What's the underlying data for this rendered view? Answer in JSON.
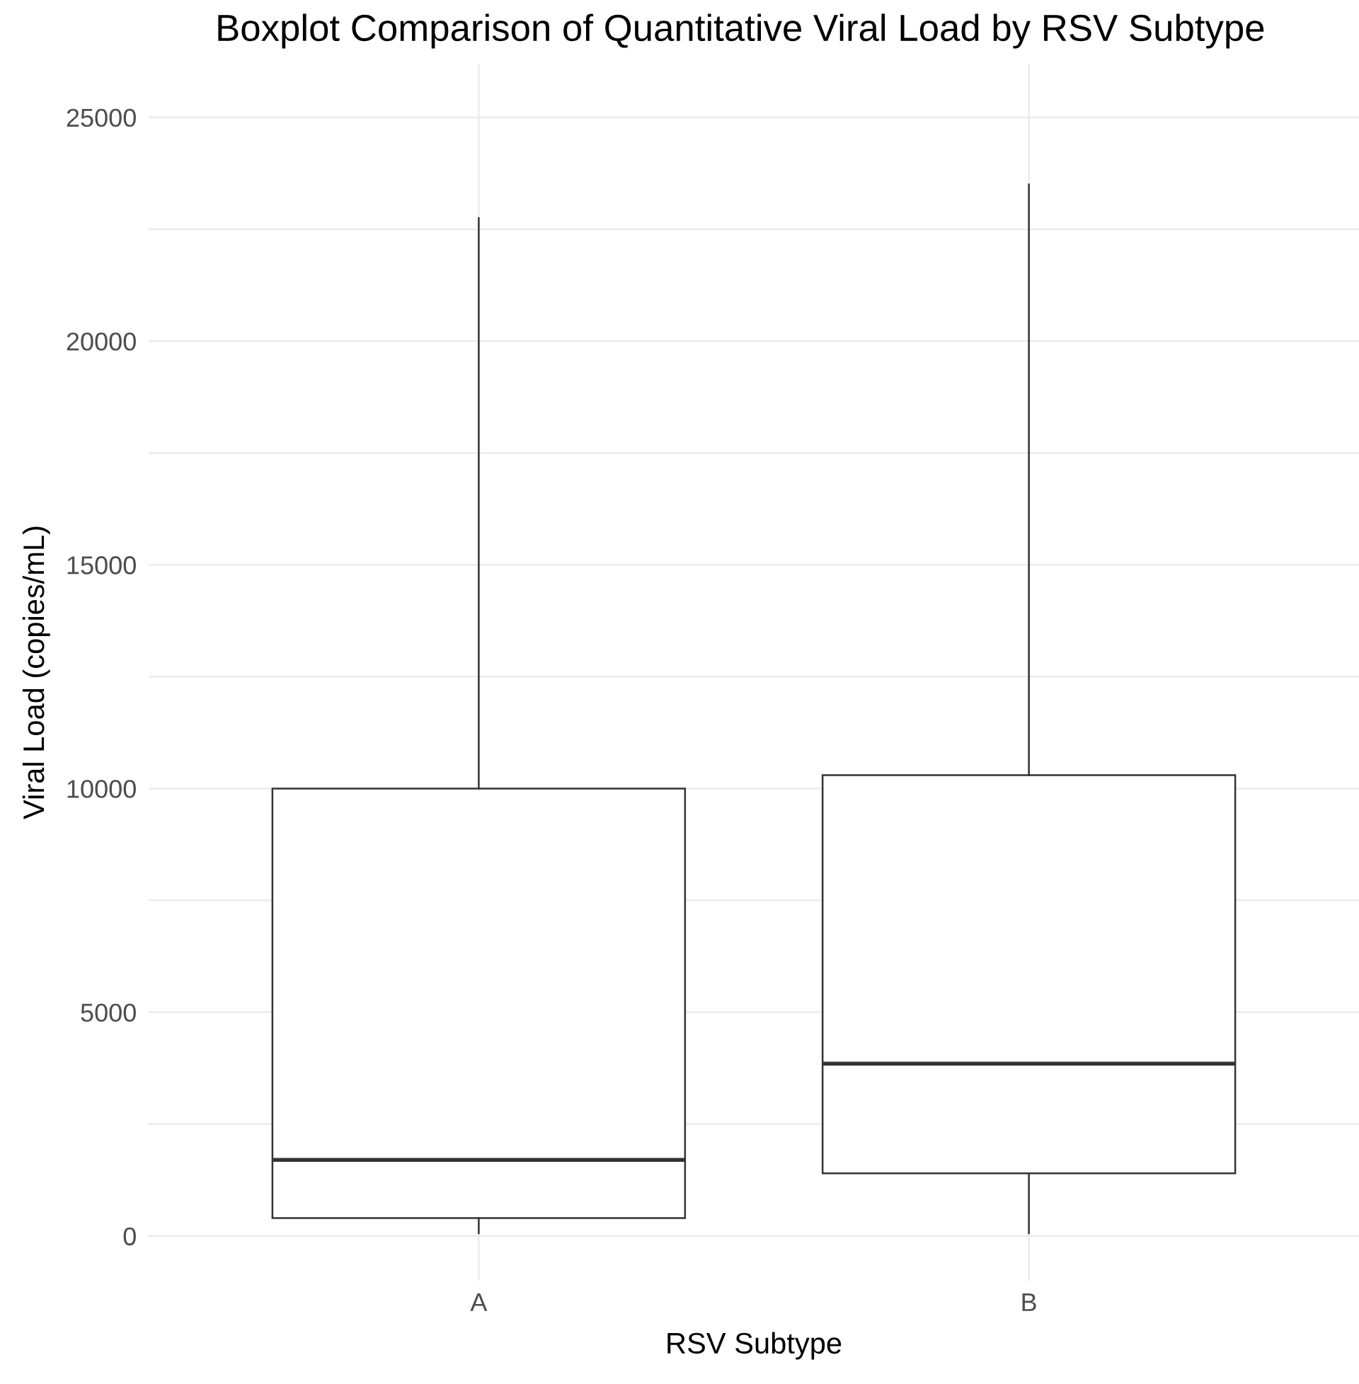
{
  "chart_data": {
    "type": "box",
    "title": "Boxplot Comparison of Quantitative Viral Load by RSV Subtype",
    "xlabel": "RSV Subtype",
    "ylabel": "Viral Load (copies/mL)",
    "categories": [
      "A",
      "B"
    ],
    "boxes": [
      {
        "low": 60,
        "q1": 400,
        "median": 1700,
        "q3": 10000,
        "high": 22750
      },
      {
        "low": 60,
        "q1": 1400,
        "median": 3850,
        "q3": 10300,
        "high": 23500
      }
    ],
    "ylim": [
      -1000,
      26200
    ],
    "yticks": [
      0,
      {
        "value": 2500,
        "label": null
      },
      5000,
      {
        "value": 7500,
        "label": null
      },
      10000,
      {
        "value": 12500,
        "label": null
      },
      15000,
      {
        "value": 17500,
        "label": null
      },
      20000,
      {
        "value": 22500,
        "label": null
      },
      25000
    ],
    "grid": true
  }
}
